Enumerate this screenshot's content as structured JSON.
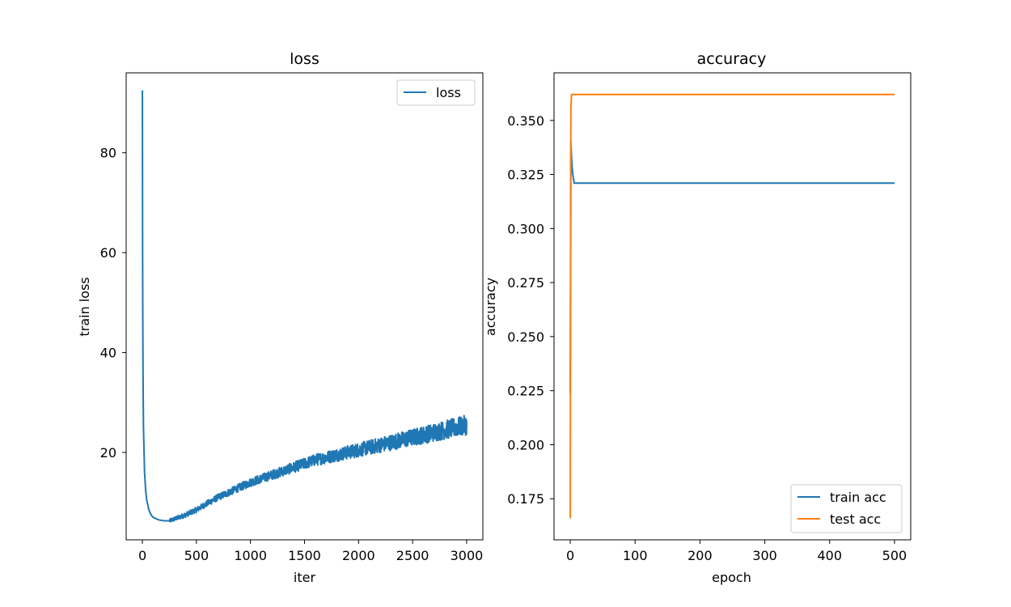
{
  "chart_data": [
    {
      "type": "line",
      "title": "loss",
      "xlabel": "iter",
      "ylabel": "train loss",
      "xlim": [
        -150,
        3150
      ],
      "ylim": [
        2.5,
        96
      ],
      "xticks": [
        0,
        500,
        1000,
        1500,
        2000,
        2500,
        3000
      ],
      "yticks": [
        20,
        40,
        60,
        80
      ],
      "legend": {
        "position": "upper-right",
        "entries": [
          "loss"
        ]
      },
      "grid": false,
      "series": [
        {
          "name": "loss",
          "color": "#1f77b4",
          "noisy": true,
          "x": [
            0,
            2,
            5,
            10,
            20,
            30,
            40,
            60,
            80,
            100,
            150,
            200,
            250,
            300,
            400,
            500,
            600,
            700,
            800,
            900,
            1000,
            1200,
            1400,
            1600,
            1800,
            2000,
            2200,
            2400,
            2600,
            2800,
            3000
          ],
          "y": [
            92.5,
            60,
            38,
            25,
            16,
            12.5,
            10.5,
            8.5,
            7.5,
            7,
            6.5,
            6.3,
            6.3,
            6.7,
            7.5,
            8.5,
            9.8,
            11.0,
            12.0,
            13.0,
            14.0,
            15.5,
            17.0,
            18.5,
            19.5,
            20.5,
            21.5,
            22.5,
            23.5,
            24.5,
            25.5
          ]
        }
      ]
    },
    {
      "type": "line",
      "title": "accuracy",
      "xlabel": "epoch",
      "ylabel": "accuracy",
      "xlim": [
        -25,
        525
      ],
      "ylim": [
        0.156,
        0.372
      ],
      "xticks": [
        0,
        100,
        200,
        300,
        400,
        500
      ],
      "yticks": [
        0.175,
        0.2,
        0.225,
        0.25,
        0.275,
        0.3,
        0.325,
        0.35
      ],
      "ytick_labels": [
        "0.175",
        "0.200",
        "0.225",
        "0.250",
        "0.275",
        "0.300",
        "0.325",
        "0.350"
      ],
      "legend": {
        "position": "lower-right",
        "entries": [
          "train acc",
          "test acc"
        ]
      },
      "grid": false,
      "series": [
        {
          "name": "train acc",
          "color": "#1f77b4",
          "x": [
            0,
            1,
            2,
            3,
            4,
            5,
            6,
            500
          ],
          "y": [
            0.224,
            0.34,
            0.333,
            0.328,
            0.325,
            0.323,
            0.321,
            0.321
          ]
        },
        {
          "name": "test acc",
          "color": "#ff7f0e",
          "x": [
            0,
            1,
            2,
            500
          ],
          "y": [
            0.166,
            0.356,
            0.362,
            0.362
          ]
        }
      ]
    }
  ]
}
